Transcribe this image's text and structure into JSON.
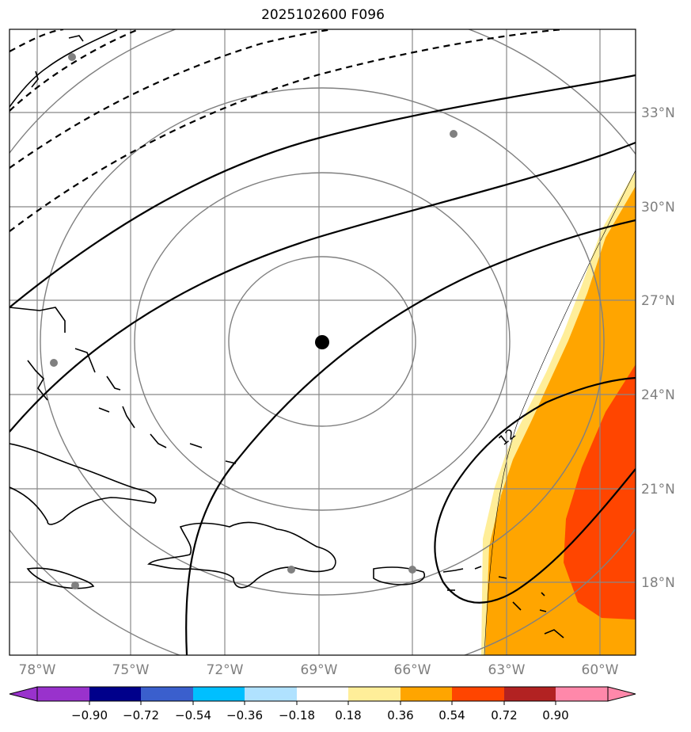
{
  "title": "2025102600 F096",
  "map": {
    "lon_labels": [
      "78°W",
      "75°W",
      "72°W",
      "69°W",
      "66°W",
      "63°W",
      "60°W"
    ],
    "lat_labels": [
      "33°N",
      "30°N",
      "27°N",
      "24°N",
      "21°N",
      "18°N"
    ],
    "contour_label": "12",
    "colors": {
      "grid": "#888888",
      "label": "#7f7f7f",
      "pale_yellow": "#ffee99",
      "orange": "#ffa500",
      "red_orange": "#ff4500",
      "city": "#808080",
      "center": "#000000"
    }
  },
  "colorbar": {
    "ticks": [
      "−0.90",
      "−0.72",
      "−0.54",
      "−0.36",
      "−0.18",
      "0.18",
      "0.36",
      "0.54",
      "0.72",
      "0.90"
    ],
    "colors": [
      "#9932cc",
      "#00008b",
      "#3a5fcd",
      "#00bfff",
      "#b0e2ff",
      "#ffffff",
      "#ffee99",
      "#ffa500",
      "#ff4500",
      "#b22222",
      "#ff88aa"
    ]
  }
}
